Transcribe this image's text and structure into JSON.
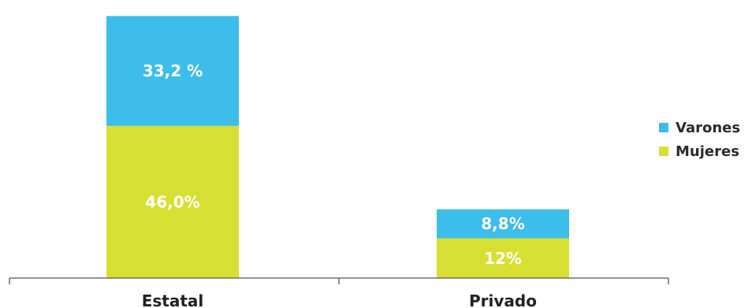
{
  "chart_data": {
    "type": "bar",
    "stacked": true,
    "categories": [
      "Estatal",
      "Privado"
    ],
    "series": [
      {
        "name": "Mujeres",
        "color": "#d7df32",
        "values": [
          46.0,
          12.0
        ],
        "labels": [
          "46,0%",
          "12%"
        ]
      },
      {
        "name": "Varones",
        "color": "#3dbde9",
        "values": [
          33.2,
          8.8
        ],
        "labels": [
          "33,2 %",
          "8,8%"
        ]
      }
    ],
    "ylim": [
      0,
      80
    ],
    "legend_placement": "right",
    "grid": false
  }
}
